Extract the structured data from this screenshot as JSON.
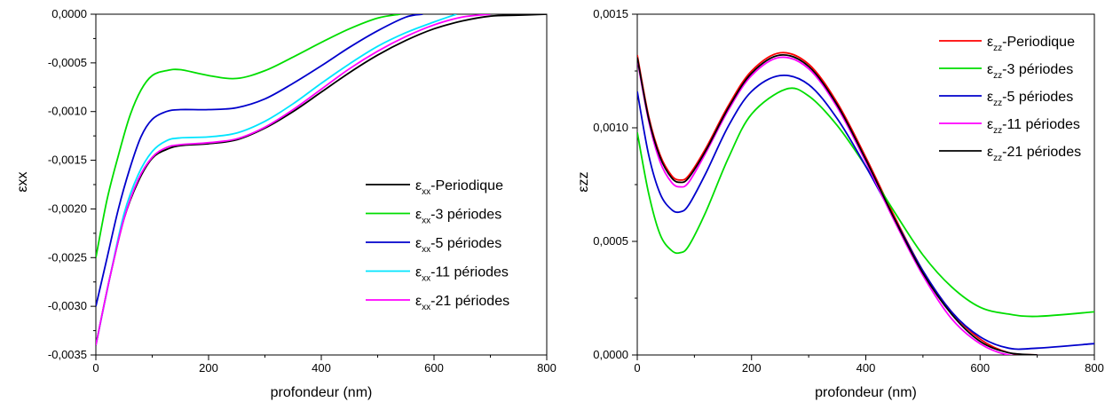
{
  "chart_data": [
    {
      "type": "line",
      "xlabel": "profondeur (nm)",
      "ylabel": "εxx",
      "xlim": [
        0,
        800
      ],
      "ylim": [
        -0.0035,
        0
      ],
      "x_ticks": [
        0,
        200,
        400,
        600,
        800
      ],
      "x_tick_labels": [
        "0",
        "200",
        "400",
        "600",
        "800"
      ],
      "y_ticks": [
        0,
        -0.0005,
        -0.001,
        -0.0015,
        -0.002,
        -0.0025,
        -0.003,
        -0.0035
      ],
      "y_tick_labels": [
        "0,0000",
        "-0,0005",
        "-0,0010",
        "-0,0015",
        "-0,0020",
        "-0,0025",
        "-0,0030",
        "-0,0035"
      ],
      "grid": false,
      "legend_position": "lower-right",
      "series": [
        {
          "name": "-Periodique",
          "label_sub": "xx",
          "color": "#000000",
          "points": [
            [
              0,
              -0.0034
            ],
            [
              25,
              -0.0027
            ],
            [
              50,
              -0.0021
            ],
            [
              75,
              -0.00172
            ],
            [
              100,
              -0.00148
            ],
            [
              125,
              -0.00139
            ],
            [
              150,
              -0.00135
            ],
            [
              200,
              -0.00133
            ],
            [
              250,
              -0.00129
            ],
            [
              300,
              -0.00117
            ],
            [
              350,
              -0.001
            ],
            [
              400,
              -0.0008
            ],
            [
              450,
              -0.0006
            ],
            [
              500,
              -0.00042
            ],
            [
              550,
              -0.00027
            ],
            [
              600,
              -0.00015
            ],
            [
              650,
              -7e-05
            ],
            [
              700,
              -2e-05
            ],
            [
              750,
              -1e-05
            ],
            [
              800,
              0
            ]
          ]
        },
        {
          "name": "-3 périodes",
          "label_sub": "xx",
          "color": "#00dd00",
          "points": [
            [
              0,
              -0.0025
            ],
            [
              20,
              -0.0019
            ],
            [
              40,
              -0.00145
            ],
            [
              60,
              -0.00105
            ],
            [
              80,
              -0.00078
            ],
            [
              100,
              -0.00063
            ],
            [
              125,
              -0.00058
            ],
            [
              150,
              -0.00057
            ],
            [
              200,
              -0.00063
            ],
            [
              250,
              -0.00066
            ],
            [
              300,
              -0.00058
            ],
            [
              350,
              -0.00044
            ],
            [
              400,
              -0.00029
            ],
            [
              450,
              -0.00015
            ],
            [
              500,
              -4e-05
            ],
            [
              540,
              0
            ]
          ]
        },
        {
          "name": "-5 périodes",
          "label_sub": "xx",
          "color": "#0000cc",
          "points": [
            [
              0,
              -0.003
            ],
            [
              20,
              -0.0025
            ],
            [
              40,
              -0.002
            ],
            [
              60,
              -0.00159
            ],
            [
              80,
              -0.00126
            ],
            [
              100,
              -0.00108
            ],
            [
              125,
              -0.001
            ],
            [
              150,
              -0.00098
            ],
            [
              200,
              -0.00098
            ],
            [
              250,
              -0.00096
            ],
            [
              300,
              -0.00087
            ],
            [
              350,
              -0.00071
            ],
            [
              400,
              -0.00053
            ],
            [
              450,
              -0.00034
            ],
            [
              500,
              -0.00017
            ],
            [
              550,
              -3e-05
            ],
            [
              580,
              0
            ]
          ]
        },
        {
          "name": "-11 périodes",
          "label_sub": "xx",
          "color": "#00e5ff",
          "points": [
            [
              0,
              -0.0034
            ],
            [
              25,
              -0.0027
            ],
            [
              50,
              -0.00205
            ],
            [
              75,
              -0.00165
            ],
            [
              100,
              -0.00141
            ],
            [
              125,
              -0.0013
            ],
            [
              150,
              -0.00127
            ],
            [
              200,
              -0.00126
            ],
            [
              250,
              -0.00122
            ],
            [
              300,
              -0.0011
            ],
            [
              350,
              -0.00092
            ],
            [
              400,
              -0.00071
            ],
            [
              450,
              -0.00051
            ],
            [
              500,
              -0.00033
            ],
            [
              550,
              -0.00019
            ],
            [
              600,
              -8e-05
            ],
            [
              640,
              0
            ]
          ]
        },
        {
          "name": "-21 périodes",
          "label_sub": "xx",
          "color": "#ff00ff",
          "points": [
            [
              0,
              -0.0034
            ],
            [
              25,
              -0.0027
            ],
            [
              50,
              -0.0021
            ],
            [
              75,
              -0.0017
            ],
            [
              100,
              -0.00147
            ],
            [
              125,
              -0.00137
            ],
            [
              150,
              -0.00134
            ],
            [
              200,
              -0.00132
            ],
            [
              250,
              -0.00128
            ],
            [
              300,
              -0.00116
            ],
            [
              350,
              -0.00098
            ],
            [
              400,
              -0.00077
            ],
            [
              450,
              -0.00056
            ],
            [
              500,
              -0.00038
            ],
            [
              550,
              -0.00023
            ],
            [
              600,
              -0.00011
            ],
            [
              650,
              -3e-05
            ],
            [
              700,
              0
            ]
          ]
        }
      ]
    },
    {
      "type": "line",
      "xlabel": "profondeur (nm)",
      "ylabel": "εzz",
      "xlim": [
        0,
        800
      ],
      "ylim": [
        0,
        0.0015
      ],
      "x_ticks": [
        0,
        200,
        400,
        600,
        800
      ],
      "x_tick_labels": [
        "0",
        "200",
        "400",
        "600",
        "800"
      ],
      "y_ticks": [
        0,
        0.0005,
        0.001,
        0.0015
      ],
      "y_tick_labels": [
        "0,0000",
        "0,0005",
        "0,0010",
        "0,0015"
      ],
      "grid": false,
      "legend_position": "top-right",
      "series": [
        {
          "name": "-Periodique",
          "label_sub": "zz",
          "color": "#ff0000",
          "points": [
            [
              0,
              0.00132
            ],
            [
              20,
              0.00105
            ],
            [
              40,
              0.00088
            ],
            [
              60,
              0.00079
            ],
            [
              75,
              0.00077
            ],
            [
              90,
              0.00079
            ],
            [
              120,
              0.00091
            ],
            [
              160,
              0.0011
            ],
            [
              200,
              0.00125
            ],
            [
              250,
              0.00133
            ],
            [
              300,
              0.00128
            ],
            [
              350,
              0.00111
            ],
            [
              400,
              0.00087
            ],
            [
              450,
              0.00061
            ],
            [
              500,
              0.00037
            ],
            [
              550,
              0.00019
            ],
            [
              600,
              7e-05
            ],
            [
              650,
              1e-05
            ],
            [
              700,
              0
            ]
          ]
        },
        {
          "name": "-3 périodes",
          "label_sub": "zz",
          "color": "#00dd00",
          "points": [
            [
              0,
              0.00098
            ],
            [
              20,
              0.00071
            ],
            [
              40,
              0.00053
            ],
            [
              60,
              0.00046
            ],
            [
              75,
              0.00045
            ],
            [
              90,
              0.00048
            ],
            [
              120,
              0.00063
            ],
            [
              160,
              0.00087
            ],
            [
              200,
              0.00106
            ],
            [
              260,
              0.00117
            ],
            [
              300,
              0.00114
            ],
            [
              350,
              0.00101
            ],
            [
              400,
              0.00083
            ],
            [
              450,
              0.00063
            ],
            [
              500,
              0.00044
            ],
            [
              550,
              0.0003
            ],
            [
              600,
              0.00021
            ],
            [
              650,
              0.00018
            ],
            [
              700,
              0.00017
            ],
            [
              800,
              0.00019
            ]
          ]
        },
        {
          "name": "-5 périodes",
          "label_sub": "zz",
          "color": "#0000cc",
          "points": [
            [
              0,
              0.00116
            ],
            [
              20,
              0.00088
            ],
            [
              40,
              0.00071
            ],
            [
              60,
              0.00064
            ],
            [
              75,
              0.00063
            ],
            [
              90,
              0.00066
            ],
            [
              120,
              0.0008
            ],
            [
              160,
              0.00101
            ],
            [
              200,
              0.00116
            ],
            [
              250,
              0.00123
            ],
            [
              300,
              0.00119
            ],
            [
              350,
              0.00104
            ],
            [
              400,
              0.00083
            ],
            [
              450,
              0.0006
            ],
            [
              500,
              0.00037
            ],
            [
              550,
              0.00019
            ],
            [
              600,
              8e-05
            ],
            [
              650,
              3e-05
            ],
            [
              700,
              3e-05
            ],
            [
              800,
              5e-05
            ]
          ]
        },
        {
          "name": "-11 périodes",
          "label_sub": "zz",
          "color": "#ff00ff",
          "points": [
            [
              0,
              0.0013
            ],
            [
              20,
              0.00103
            ],
            [
              40,
              0.00085
            ],
            [
              60,
              0.00076
            ],
            [
              75,
              0.00074
            ],
            [
              90,
              0.00076
            ],
            [
              120,
              0.00089
            ],
            [
              160,
              0.00108
            ],
            [
              200,
              0.00123
            ],
            [
              250,
              0.00131
            ],
            [
              300,
              0.00126
            ],
            [
              350,
              0.00109
            ],
            [
              400,
              0.00085
            ],
            [
              450,
              0.00059
            ],
            [
              500,
              0.00035
            ],
            [
              550,
              0.00016
            ],
            [
              600,
              5e-05
            ],
            [
              650,
              0
            ],
            [
              700,
              0
            ]
          ]
        },
        {
          "name": "-21 périodes",
          "label_sub": "zz",
          "color": "#000000",
          "points": [
            [
              0,
              0.00131
            ],
            [
              20,
              0.00104
            ],
            [
              40,
              0.00087
            ],
            [
              60,
              0.00078
            ],
            [
              75,
              0.00076
            ],
            [
              90,
              0.00078
            ],
            [
              120,
              0.0009
            ],
            [
              160,
              0.00109
            ],
            [
              200,
              0.00124
            ],
            [
              250,
              0.00132
            ],
            [
              300,
              0.00127
            ],
            [
              350,
              0.0011
            ],
            [
              400,
              0.00086
            ],
            [
              450,
              0.0006
            ],
            [
              500,
              0.00036
            ],
            [
              550,
              0.00018
            ],
            [
              600,
              6e-05
            ],
            [
              650,
              1e-05
            ],
            [
              700,
              0
            ]
          ]
        }
      ]
    }
  ]
}
